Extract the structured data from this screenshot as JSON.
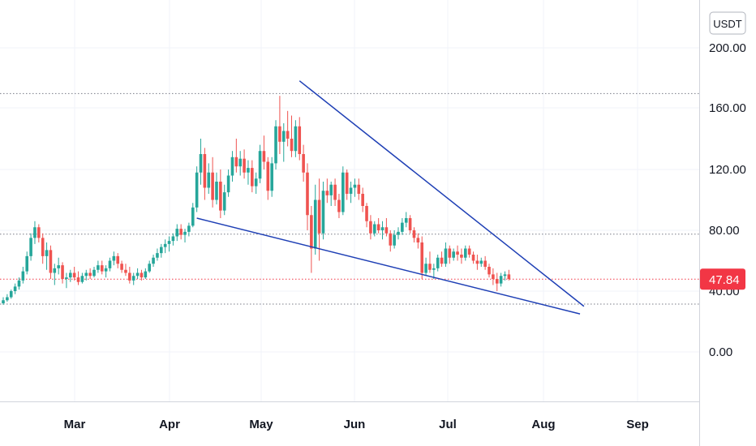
{
  "chart_data": {
    "type": "candlestick",
    "price_scale": {
      "unit": "USDT",
      "scale": "log",
      "visible_range": [
        -25,
        250
      ]
    },
    "y_ticks": [
      {
        "value": 200,
        "label": "200.00"
      },
      {
        "value": 160,
        "label": "160.00"
      },
      {
        "value": 120,
        "label": "120.00"
      },
      {
        "value": 80,
        "label": "80.00"
      },
      {
        "value": 40,
        "label": "40.00"
      },
      {
        "value": 0,
        "label": "0.00"
      }
    ],
    "x_ticks": [
      "Mar",
      "Apr",
      "May",
      "Jun",
      "Jul",
      "Aug",
      "Sep"
    ],
    "current_price": {
      "value": 47.84,
      "label": "47.84",
      "color": "#f23645"
    },
    "colors": {
      "up": "#26a69a",
      "down": "#ef5350",
      "trendline": "#1e3fb5",
      "grid": "#f0f3fa",
      "dotted": "#787b86"
    },
    "horizontal_levels": [
      169.5,
      77.5,
      31.5
    ],
    "trendlines": [
      {
        "name": "upper",
        "from": {
          "day": 75,
          "price": 178
        },
        "to": {
          "day": 147,
          "price": 30
        }
      },
      {
        "name": "lower",
        "from": {
          "day": 49,
          "price": 88
        },
        "to": {
          "day": 146,
          "price": 25
        }
      }
    ],
    "candles": [
      [
        32,
        36,
        31,
        34
      ],
      [
        34,
        38,
        33,
        36
      ],
      [
        36,
        41,
        35,
        40
      ],
      [
        40,
        45,
        38,
        43
      ],
      [
        43,
        49,
        41,
        47
      ],
      [
        47,
        56,
        45,
        53
      ],
      [
        53,
        66,
        51,
        63
      ],
      [
        63,
        78,
        60,
        75
      ],
      [
        75,
        86,
        71,
        82
      ],
      [
        82,
        84,
        72,
        75
      ],
      [
        75,
        78,
        58,
        63
      ],
      [
        63,
        72,
        54,
        67
      ],
      [
        67,
        70,
        48,
        52
      ],
      [
        52,
        58,
        44,
        55
      ],
      [
        55,
        62,
        51,
        57
      ],
      [
        57,
        59,
        45,
        48
      ],
      [
        48,
        52,
        42,
        49
      ],
      [
        49,
        54,
        46,
        52
      ],
      [
        52,
        56,
        47,
        49
      ],
      [
        49,
        53,
        44,
        46
      ],
      [
        46,
        52,
        45,
        50
      ],
      [
        50,
        54,
        47,
        52
      ],
      [
        52,
        55,
        48,
        50
      ],
      [
        50,
        56,
        49,
        54
      ],
      [
        54,
        60,
        52,
        57
      ],
      [
        57,
        60,
        51,
        53
      ],
      [
        53,
        57,
        49,
        55
      ],
      [
        55,
        62,
        53,
        60
      ],
      [
        60,
        66,
        57,
        63
      ],
      [
        63,
        65,
        55,
        58
      ],
      [
        58,
        60,
        52,
        54
      ],
      [
        54,
        58,
        50,
        52
      ],
      [
        52,
        56,
        45,
        47
      ],
      [
        47,
        52,
        44,
        50
      ],
      [
        50,
        55,
        48,
        52
      ],
      [
        52,
        54,
        47,
        49
      ],
      [
        49,
        55,
        48,
        53
      ],
      [
        53,
        60,
        52,
        58
      ],
      [
        58,
        64,
        56,
        62
      ],
      [
        62,
        68,
        60,
        65
      ],
      [
        65,
        71,
        62,
        69
      ],
      [
        69,
        74,
        65,
        71
      ],
      [
        71,
        76,
        66,
        73
      ],
      [
        73,
        78,
        70,
        76
      ],
      [
        76,
        84,
        73,
        81
      ],
      [
        81,
        84,
        74,
        77
      ],
      [
        77,
        81,
        72,
        79
      ],
      [
        79,
        85,
        76,
        83
      ],
      [
        83,
        98,
        82,
        95
      ],
      [
        95,
        122,
        92,
        118
      ],
      [
        118,
        140,
        110,
        130
      ],
      [
        130,
        134,
        100,
        108
      ],
      [
        108,
        124,
        104,
        118
      ],
      [
        118,
        128,
        95,
        100
      ],
      [
        100,
        118,
        97,
        112
      ],
      [
        112,
        120,
        88,
        93
      ],
      [
        93,
        110,
        90,
        105
      ],
      [
        105,
        120,
        102,
        116
      ],
      [
        116,
        132,
        112,
        128
      ],
      [
        128,
        140,
        118,
        122
      ],
      [
        122,
        132,
        116,
        127
      ],
      [
        127,
        133,
        114,
        118
      ],
      [
        118,
        126,
        110,
        121
      ],
      [
        121,
        126,
        105,
        109
      ],
      [
        109,
        118,
        104,
        114
      ],
      [
        114,
        136,
        111,
        132
      ],
      [
        132,
        142,
        120,
        125
      ],
      [
        125,
        128,
        100,
        106
      ],
      [
        106,
        128,
        102,
        124
      ],
      [
        124,
        152,
        120,
        148
      ],
      [
        148,
        168,
        130,
        138
      ],
      [
        138,
        150,
        125,
        145
      ],
      [
        145,
        158,
        135,
        140
      ],
      [
        140,
        155,
        128,
        132
      ],
      [
        132,
        152,
        128,
        148
      ],
      [
        148,
        154,
        126,
        130
      ],
      [
        130,
        136,
        112,
        118
      ],
      [
        118,
        124,
        80,
        90
      ],
      [
        90,
        96,
        52,
        68
      ],
      [
        68,
        110,
        64,
        100
      ],
      [
        100,
        114,
        60,
        78
      ],
      [
        78,
        112,
        74,
        106
      ],
      [
        106,
        114,
        98,
        103
      ],
      [
        103,
        112,
        96,
        110
      ],
      [
        110,
        114,
        96,
        100
      ],
      [
        100,
        104,
        88,
        92
      ],
      [
        92,
        122,
        90,
        118
      ],
      [
        118,
        120,
        100,
        104
      ],
      [
        104,
        112,
        98,
        108
      ],
      [
        108,
        114,
        102,
        110
      ],
      [
        110,
        114,
        100,
        104
      ],
      [
        104,
        108,
        92,
        96
      ],
      [
        96,
        98,
        82,
        86
      ],
      [
        86,
        90,
        74,
        78
      ],
      [
        78,
        86,
        76,
        84
      ],
      [
        84,
        88,
        78,
        80
      ],
      [
        80,
        86,
        74,
        82
      ],
      [
        82,
        88,
        76,
        78
      ],
      [
        78,
        80,
        66,
        70
      ],
      [
        70,
        80,
        68,
        77
      ],
      [
        77,
        82,
        74,
        79
      ],
      [
        79,
        88,
        77,
        85
      ],
      [
        85,
        92,
        82,
        88
      ],
      [
        88,
        90,
        78,
        80
      ],
      [
        80,
        82,
        72,
        75
      ],
      [
        75,
        78,
        68,
        72
      ],
      [
        72,
        76,
        48,
        52
      ],
      [
        52,
        62,
        50,
        58
      ],
      [
        58,
        66,
        52,
        54
      ],
      [
        54,
        58,
        48,
        55
      ],
      [
        55,
        64,
        53,
        62
      ],
      [
        62,
        66,
        56,
        58
      ],
      [
        58,
        72,
        56,
        68
      ],
      [
        68,
        70,
        58,
        62
      ],
      [
        62,
        68,
        60,
        66
      ],
      [
        66,
        70,
        60,
        64
      ],
      [
        64,
        68,
        58,
        62
      ],
      [
        62,
        70,
        60,
        68
      ],
      [
        68,
        70,
        62,
        64
      ],
      [
        64,
        66,
        58,
        60
      ],
      [
        60,
        64,
        54,
        58
      ],
      [
        58,
        62,
        56,
        60
      ],
      [
        60,
        63,
        54,
        56
      ],
      [
        56,
        58,
        49,
        51
      ],
      [
        51,
        55,
        44,
        48
      ],
      [
        48,
        52,
        40,
        45
      ],
      [
        45,
        52,
        43,
        50
      ],
      [
        50,
        53,
        47,
        51
      ],
      [
        51,
        54,
        47,
        48
      ]
    ]
  }
}
